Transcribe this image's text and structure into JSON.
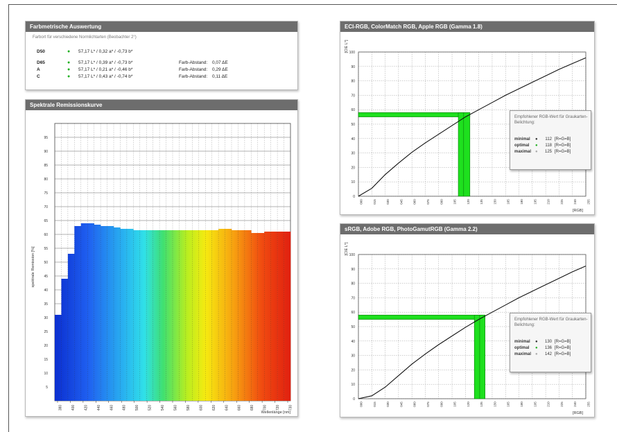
{
  "farbmetrik": {
    "title": "Farbmetrische Auswertung",
    "subtitle": "Farbort für verschiedene Normlichtarten (Beobachter 2°)",
    "rows": [
      {
        "label": "D50",
        "value": "57,17 L* / 0,32 a* / -0,73 b*",
        "dist_label": "",
        "dist": ""
      },
      {
        "label": "D65",
        "value": "57,17 L* / 0,39 a* / -0,73 b*",
        "dist_label": "Farb-Abstand:",
        "dist": "0,07 ΔE"
      },
      {
        "label": "A",
        "value": "57,17 L* / 0,21 a* / -0,46 b*",
        "dist_label": "Farb-Abstand:",
        "dist": "0,29 ΔE"
      },
      {
        "label": "C",
        "value": "57,17 L* / 0,43 a* / -0,74 b*",
        "dist_label": "Farb-Abstand:",
        "dist": "0,11 ΔE"
      }
    ]
  },
  "spektral": {
    "title": "Spektrale Remissionskurve",
    "ylabel": "spektrale Remission [%]",
    "xlabel": "Wellenlänge [nm]"
  },
  "gamma18": {
    "title": "ECI-RGB, ColorMatch RGB, Apple RGB (Gamma 1.8)",
    "ylabel": "[CIE L*]",
    "xlabel": "[RGB]",
    "legend_title": "Empfohlener RGB-Wert für Graukarten-Belichtung:",
    "legend_rows": [
      {
        "label": "minimal",
        "value": "112",
        "note": "[R=G=B]"
      },
      {
        "label": "optimal",
        "value": "118",
        "note": "[R=G=B]"
      },
      {
        "label": "maximal",
        "value": "125",
        "note": "[R=G=B]"
      }
    ]
  },
  "gamma22": {
    "title": "sRGB, Adobe RGB, PhotoGamutRGB (Gamma 2.2)",
    "ylabel": "[CIE L*]",
    "xlabel": "[RGB]",
    "legend_title": "Empfohlener RGB-Wert für Graukarten-Belichtung:",
    "legend_rows": [
      {
        "label": "minimal",
        "value": "130",
        "note": "[R=G=B]"
      },
      {
        "label": "optimal",
        "value": "136",
        "note": "[R=G=B]"
      },
      {
        "label": "maximal",
        "value": "142",
        "note": "[R=G=B]"
      }
    ]
  },
  "chart_data": [
    {
      "type": "bar",
      "title": "Spektrale Remissionskurve",
      "xlabel": "Wellenlänge [nm]",
      "ylabel": "spektrale Remission [%]",
      "ylim": [
        0,
        100
      ],
      "x_ticks": [
        "380",
        "400",
        "420",
        "440",
        "460",
        "480",
        "500",
        "520",
        "540",
        "560",
        "580",
        "600",
        "620",
        "640",
        "660",
        "680",
        "700",
        "720",
        "730"
      ],
      "y_ticks": [
        "5",
        "10",
        "15",
        "20",
        "25",
        "30",
        "35",
        "40",
        "45",
        "50",
        "55",
        "60",
        "65",
        "70",
        "75",
        "80",
        "85",
        "90",
        "95"
      ],
      "categories": [
        380,
        390,
        400,
        410,
        420,
        430,
        440,
        450,
        460,
        470,
        480,
        490,
        500,
        510,
        520,
        530,
        540,
        550,
        560,
        570,
        580,
        590,
        600,
        610,
        620,
        630,
        640,
        650,
        660,
        670,
        680,
        690,
        700,
        710,
        720,
        730
      ],
      "values": [
        31,
        44,
        53,
        63,
        64,
        64,
        63.5,
        63,
        63,
        62.5,
        62,
        62,
        61.5,
        61.5,
        61.5,
        61.5,
        61.5,
        61.5,
        61.5,
        61.5,
        61.5,
        61.5,
        61.5,
        61.5,
        61.5,
        62,
        62,
        61.5,
        61.5,
        61.5,
        60.5,
        60.5,
        61,
        61,
        61,
        61
      ]
    },
    {
      "type": "line",
      "title": "ECI-RGB, ColorMatch RGB, Apple RGB (Gamma 1.8)",
      "xlabel": "[RGB]",
      "ylabel": "[CIE L*]",
      "xlim": [
        0,
        255
      ],
      "ylim": [
        0,
        100
      ],
      "x_ticks": [
        "000",
        "015",
        "030",
        "045",
        "060",
        "075",
        "090",
        "105",
        "120",
        "135",
        "150",
        "165",
        "180",
        "195",
        "210",
        "225",
        "240",
        "255"
      ],
      "y_ticks": [
        "0",
        "10",
        "20",
        "30",
        "40",
        "50",
        "60",
        "70",
        "80",
        "90",
        "100"
      ],
      "x": [
        0,
        15,
        30,
        45,
        60,
        75,
        90,
        105,
        120,
        135,
        150,
        165,
        180,
        195,
        210,
        225,
        240,
        255
      ],
      "y": [
        0,
        5.5,
        15,
        23,
        30.5,
        37,
        43,
        49,
        55,
        60,
        65,
        70,
        74.5,
        79,
        83.5,
        88,
        92,
        96
      ],
      "band": {
        "min": 112,
        "optimal": 118,
        "max": 125,
        "y_min": 55,
        "y_max": 58
      }
    },
    {
      "type": "line",
      "title": "sRGB, Adobe RGB, PhotoGamutRGB (Gamma 2.2)",
      "xlabel": "[RGB]",
      "ylabel": "[CIE L*]",
      "xlim": [
        0,
        255
      ],
      "ylim": [
        0,
        100
      ],
      "x_ticks": [
        "000",
        "015",
        "030",
        "045",
        "060",
        "075",
        "090",
        "105",
        "120",
        "135",
        "150",
        "165",
        "180",
        "195",
        "210",
        "225",
        "240",
        "255"
      ],
      "y_ticks": [
        "0",
        "10",
        "20",
        "30",
        "40",
        "50",
        "60",
        "70",
        "80",
        "90",
        "100"
      ],
      "x": [
        0,
        15,
        30,
        45,
        60,
        75,
        90,
        105,
        120,
        135,
        150,
        165,
        180,
        195,
        210,
        225,
        240,
        255
      ],
      "y": [
        0,
        2,
        8,
        16,
        24,
        31,
        37.5,
        43.5,
        49.5,
        55,
        60,
        65,
        70,
        74.5,
        79,
        83.5,
        88,
        92
      ],
      "band": {
        "min": 130,
        "optimal": 136,
        "max": 142,
        "y_min": 55,
        "y_max": 58
      }
    }
  ]
}
